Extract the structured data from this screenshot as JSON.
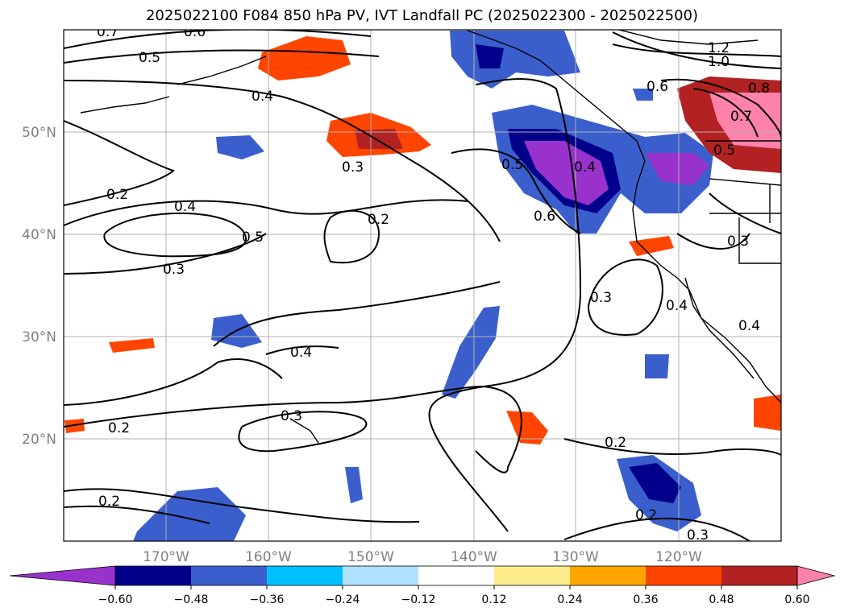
{
  "title": "2025022100 F084 850 hPa PV, IVT Landfall PC (2025022300 - 2025022500)",
  "map": {
    "lon_range": [
      -180,
      -110
    ],
    "lat_range": [
      10,
      60
    ],
    "grid": true,
    "lon_ticks": [
      {
        "value": -170,
        "label": "170°W"
      },
      {
        "value": -160,
        "label": "160°W"
      },
      {
        "value": -150,
        "label": "150°W"
      },
      {
        "value": -140,
        "label": "140°W"
      },
      {
        "value": -130,
        "label": "130°W"
      },
      {
        "value": -120,
        "label": "120°W"
      }
    ],
    "lat_ticks": [
      {
        "value": 50,
        "label": "50°N"
      },
      {
        "value": 40,
        "label": "40°N"
      },
      {
        "value": 30,
        "label": "30°N"
      },
      {
        "value": 20,
        "label": "20°N"
      }
    ],
    "contour_labels": [
      "0.7",
      "0.6",
      "0.5",
      "0.4",
      "1.2",
      "1.0",
      "0.6",
      "0.8",
      "0.7",
      "0.5",
      "0.3",
      "0.5",
      "0.4",
      "0.2",
      "0.4",
      "0.6",
      "0.5",
      "0.2",
      "0.3",
      "0.3",
      "0.3",
      "0.4",
      "0.4",
      "0.4",
      "0.3",
      "0.2",
      "0.2",
      "0.2",
      "0.2",
      "0.3"
    ]
  },
  "colorbar": {
    "ticks": [
      "−0.60",
      "−0.48",
      "−0.36",
      "−0.24",
      "−0.12",
      "0.12",
      "0.24",
      "0.36",
      "0.48",
      "0.60"
    ],
    "colors": [
      "#9932cc",
      "#00008b",
      "#3a5fcd",
      "#00bfff",
      "#b0e2ff",
      "#ffffff",
      "#ffec8b",
      "#ffa500",
      "#ff4500",
      "#b22222",
      "#ff82ab"
    ]
  }
}
